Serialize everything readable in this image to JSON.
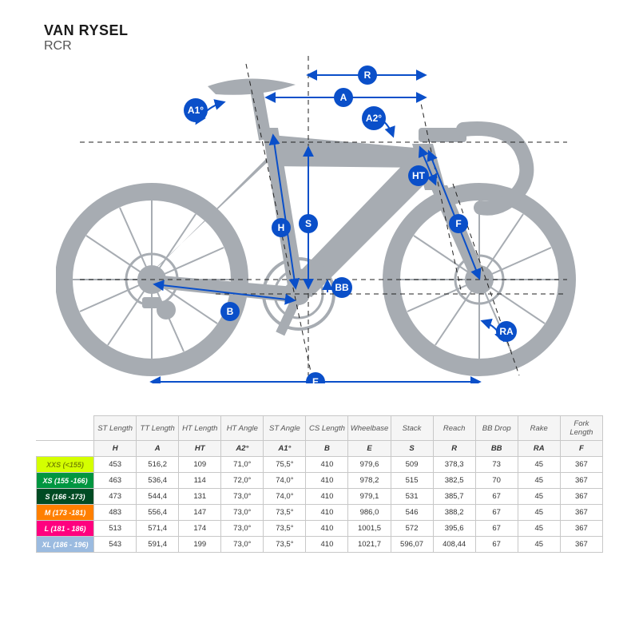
{
  "header": {
    "brand": "VAN RYSEL",
    "model": "RCR"
  },
  "colors": {
    "bike_fill": "#a7acb2",
    "accent_blue": "#0a4fc9",
    "dash": "#333333"
  },
  "diagram": {
    "labels": [
      "A1°",
      "A2°",
      "R",
      "A",
      "HT",
      "S",
      "H",
      "F",
      "B",
      "BB",
      "E",
      "RA"
    ]
  },
  "geometry_table": {
    "columns_top": [
      "ST Length",
      "TT Length",
      "HT Length",
      "HT Angle",
      "ST Angle",
      "CS Length",
      "Wheelbase",
      "Stack",
      "Reach",
      "BB Drop",
      "Rake",
      "Fork Length"
    ],
    "columns_sym": [
      "H",
      "A",
      "HT",
      "A2°",
      "A1°",
      "B",
      "E",
      "S",
      "R",
      "BB",
      "RA",
      "F"
    ],
    "sizes": [
      {
        "label": "XXS (<155)",
        "bg": "#d4ff00",
        "fg": "#7a8a00",
        "values": [
          "453",
          "516,2",
          "109",
          "71,0°",
          "75,5°",
          "410",
          "979,6",
          "509",
          "378,3",
          "73",
          "45",
          "367"
        ]
      },
      {
        "label": "XS (155 -166)",
        "bg": "#009640",
        "fg": "#ffffff",
        "values": [
          "463",
          "536,4",
          "114",
          "72,0°",
          "74,0°",
          "410",
          "978,2",
          "515",
          "382,5",
          "70",
          "45",
          "367"
        ]
      },
      {
        "label": "S (166 -173)",
        "bg": "#004b23",
        "fg": "#ffffff",
        "values": [
          "473",
          "544,4",
          "131",
          "73,0°",
          "74,0°",
          "410",
          "979,1",
          "531",
          "385,7",
          "67",
          "45",
          "367"
        ]
      },
      {
        "label": "M (173 -181)",
        "bg": "#ff7f00",
        "fg": "#ffffff",
        "values": [
          "483",
          "556,4",
          "147",
          "73,0°",
          "73,5°",
          "410",
          "986,0",
          "546",
          "388,2",
          "67",
          "45",
          "367"
        ]
      },
      {
        "label": "L (181 - 186)",
        "bg": "#ff007f",
        "fg": "#ffffff",
        "values": [
          "513",
          "571,4",
          "174",
          "73,0°",
          "73,5°",
          "410",
          "1001,5",
          "572",
          "395,6",
          "67",
          "45",
          "367"
        ]
      },
      {
        "label": "XL (186 - 196)",
        "bg": "#9bbbe0",
        "fg": "#ffffff",
        "values": [
          "543",
          "591,4",
          "199",
          "73,0°",
          "73,5°",
          "410",
          "1021,7",
          "596,07",
          "408,44",
          "67",
          "45",
          "367"
        ]
      }
    ]
  }
}
